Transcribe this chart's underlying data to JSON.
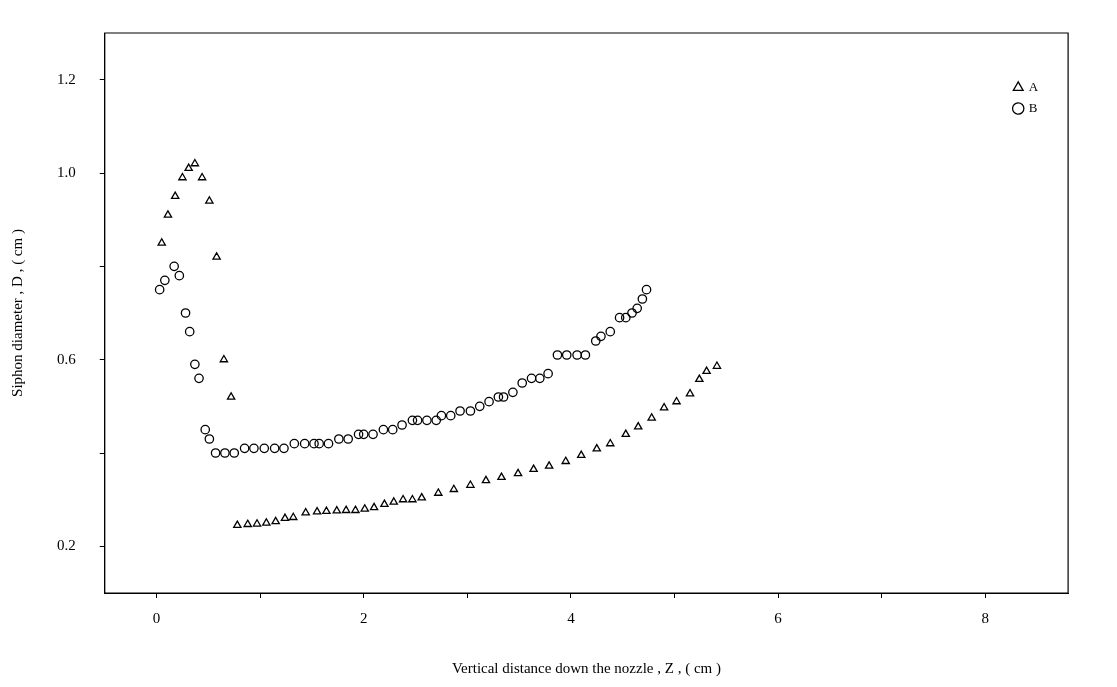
{
  "chart_data": {
    "type": "scatter",
    "xlabel": "Vertical distance down the nozzle , Z , ( cm )",
    "ylabel": "Siphon diameter , D , ( cm )",
    "xlim": [
      -0.5,
      8.8
    ],
    "xticks": [
      0,
      {
        "value": 1,
        "label": null
      },
      2,
      {
        "value": 3,
        "label": null
      },
      4,
      {
        "value": 5,
        "label": null
      },
      6,
      {
        "value": 7,
        "label": null
      },
      8
    ],
    "ylim": [
      0.1,
      1.3
    ],
    "yticks": [
      0.2,
      {
        "value": 0.4,
        "label": null
      },
      0.6,
      {
        "value": 0.8,
        "label": null
      },
      {
        "value": 1,
        "label": "1.0"
      },
      1.2
    ],
    "grid": false,
    "legend": "top right",
    "series": [
      {
        "name": "A",
        "color": "#000000",
        "marker": "triangle",
        "x": [
          0.05,
          0.11,
          0.18,
          0.25,
          0.31,
          0.37,
          0.44,
          0.51,
          0.58,
          0.65,
          0.72,
          0.78,
          0.88,
          0.97,
          1.06,
          1.15,
          1.24,
          1.32,
          1.44,
          1.55,
          1.64,
          1.74,
          1.83,
          1.92,
          2.01,
          2.1,
          2.2,
          2.29,
          2.38,
          2.47,
          2.56,
          2.72,
          2.87,
          3.03,
          3.18,
          3.33,
          3.49,
          3.64,
          3.79,
          3.95,
          4.1,
          4.25,
          4.38,
          4.53,
          4.65,
          4.78,
          4.9,
          5.02,
          5.15,
          5.24,
          5.31,
          5.41
        ],
        "values": [
          0.85,
          0.91,
          0.95,
          0.99,
          1.01,
          1.02,
          0.99,
          0.94,
          0.82,
          0.6,
          0.52,
          0.245,
          0.247,
          0.248,
          0.25,
          0.253,
          0.26,
          0.262,
          0.272,
          0.274,
          0.275,
          0.276,
          0.277,
          0.277,
          0.28,
          0.283,
          0.29,
          0.295,
          0.3,
          0.3,
          0.304,
          0.314,
          0.322,
          0.331,
          0.341,
          0.348,
          0.356,
          0.365,
          0.372,
          0.382,
          0.395,
          0.409,
          0.42,
          0.44,
          0.456,
          0.475,
          0.497,
          0.51,
          0.527,
          0.558,
          0.575,
          0.586
        ]
      },
      {
        "name": "B",
        "color": "#000000",
        "marker": "circle",
        "x": [
          0.03,
          0.08,
          0.17,
          0.22,
          0.28,
          0.32,
          0.37,
          0.41,
          0.47,
          0.51,
          0.57,
          0.66,
          0.75,
          0.85,
          0.94,
          1.04,
          1.14,
          1.23,
          1.33,
          1.43,
          1.52,
          1.57,
          1.66,
          1.76,
          1.85,
          1.95,
          2.0,
          2.09,
          2.19,
          2.28,
          2.37,
          2.47,
          2.52,
          2.61,
          2.7,
          2.75,
          2.84,
          2.93,
          3.03,
          3.12,
          3.21,
          3.3,
          3.35,
          3.44,
          3.53,
          3.62,
          3.7,
          3.78,
          3.87,
          3.96,
          4.06,
          4.14,
          4.24,
          4.29,
          4.38,
          4.47,
          4.53,
          4.59,
          4.64,
          4.69,
          4.73
        ],
        "values": [
          0.75,
          0.77,
          0.8,
          0.78,
          0.7,
          0.66,
          0.59,
          0.56,
          0.45,
          0.43,
          0.4,
          0.4,
          0.4,
          0.41,
          0.41,
          0.41,
          0.41,
          0.41,
          0.42,
          0.42,
          0.42,
          0.42,
          0.42,
          0.43,
          0.43,
          0.44,
          0.44,
          0.44,
          0.45,
          0.45,
          0.46,
          0.47,
          0.47,
          0.47,
          0.47,
          0.48,
          0.48,
          0.49,
          0.49,
          0.5,
          0.51,
          0.52,
          0.52,
          0.53,
          0.55,
          0.56,
          0.56,
          0.57,
          0.61,
          0.61,
          0.61,
          0.61,
          0.64,
          0.65,
          0.66,
          0.69,
          0.69,
          0.7,
          0.71,
          0.73,
          0.75
        ]
      }
    ]
  }
}
